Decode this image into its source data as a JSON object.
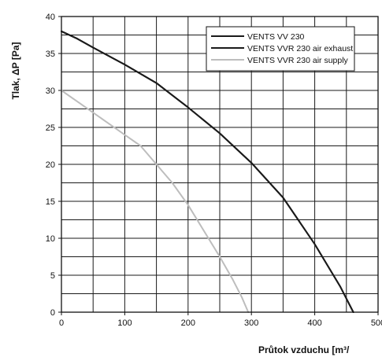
{
  "chart_data": {
    "type": "line",
    "title": "",
    "xlabel": "Průtok vzduchu [m³/",
    "ylabel": "Tlak, ΔP [Pa]",
    "xlim": [
      0,
      500
    ],
    "ylim": [
      0,
      40
    ],
    "x_ticks": [
      0,
      100,
      200,
      300,
      400,
      500
    ],
    "y_ticks": [
      0,
      5,
      10,
      15,
      20,
      25,
      30,
      35,
      40
    ],
    "grid": true,
    "legend_position": "top-right",
    "series": [
      {
        "name": "VENTS VV 230",
        "color": "#1a1a1a",
        "x": [
          0,
          25,
          50,
          100,
          150,
          200,
          250,
          300,
          350,
          400,
          440,
          461
        ],
        "y": [
          38,
          37,
          35.8,
          33.5,
          31,
          27.7,
          24.2,
          20.2,
          15.5,
          9.2,
          3.5,
          0
        ]
      },
      {
        "name": "VENTS VVR 230 air exhaust",
        "color": "#1a1a1a",
        "x": [
          0,
          25,
          50,
          100,
          150,
          200,
          250,
          300,
          350,
          400,
          440,
          461
        ],
        "y": [
          38,
          37,
          35.8,
          33.5,
          31,
          27.7,
          24.2,
          20.2,
          15.5,
          9.2,
          3.5,
          0
        ]
      },
      {
        "name": "VENTS VVR 230 air supply",
        "color": "#bdbdbd",
        "x": [
          0,
          25,
          50,
          75,
          100,
          125,
          150,
          175,
          200,
          225,
          250,
          270,
          285,
          295
        ],
        "y": [
          30,
          28.5,
          27,
          25.5,
          24,
          22.5,
          20,
          17.5,
          14.5,
          11,
          7.5,
          4.5,
          2,
          0
        ]
      }
    ]
  }
}
